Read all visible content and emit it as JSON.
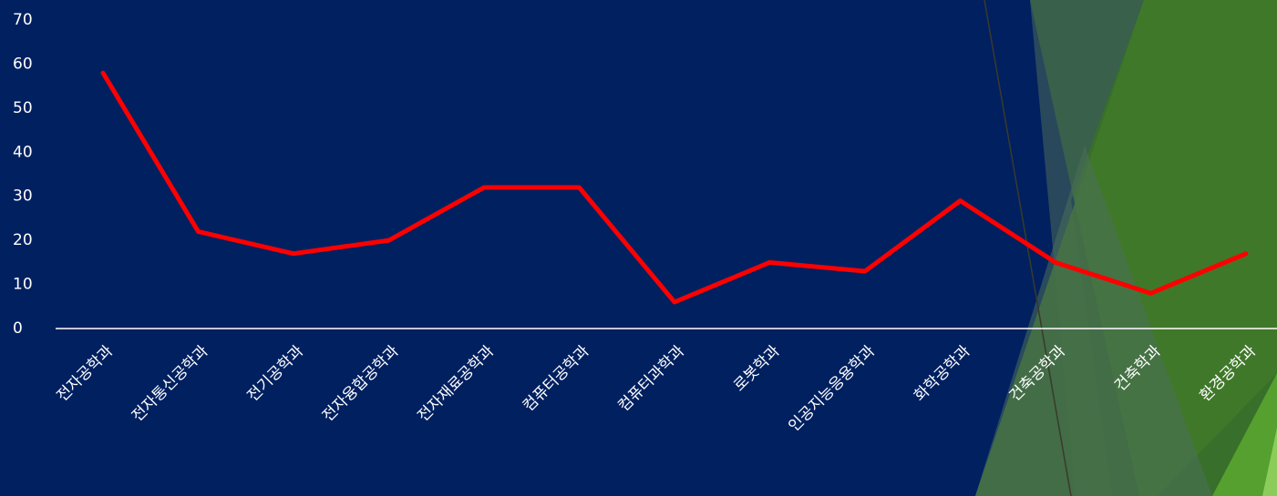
{
  "chart_data": {
    "type": "line",
    "categories": [
      "전자공학과",
      "전자통신공학과",
      "전기공학과",
      "전자융합공학과",
      "전자재료공학과",
      "컴퓨터공학과",
      "컴퓨터과학과",
      "로봇학과",
      "인공지능응용학과",
      "화학공학과",
      "건축공학과",
      "건축학과",
      "환경공학과"
    ],
    "values": [
      58,
      22,
      17,
      20,
      32,
      32,
      6,
      15,
      13,
      29,
      15,
      8,
      17
    ],
    "color": "#ff0000",
    "ylim": [
      0,
      70
    ],
    "yticks": [
      0,
      10,
      20,
      30,
      40,
      50,
      60,
      70
    ],
    "grid": false
  }
}
